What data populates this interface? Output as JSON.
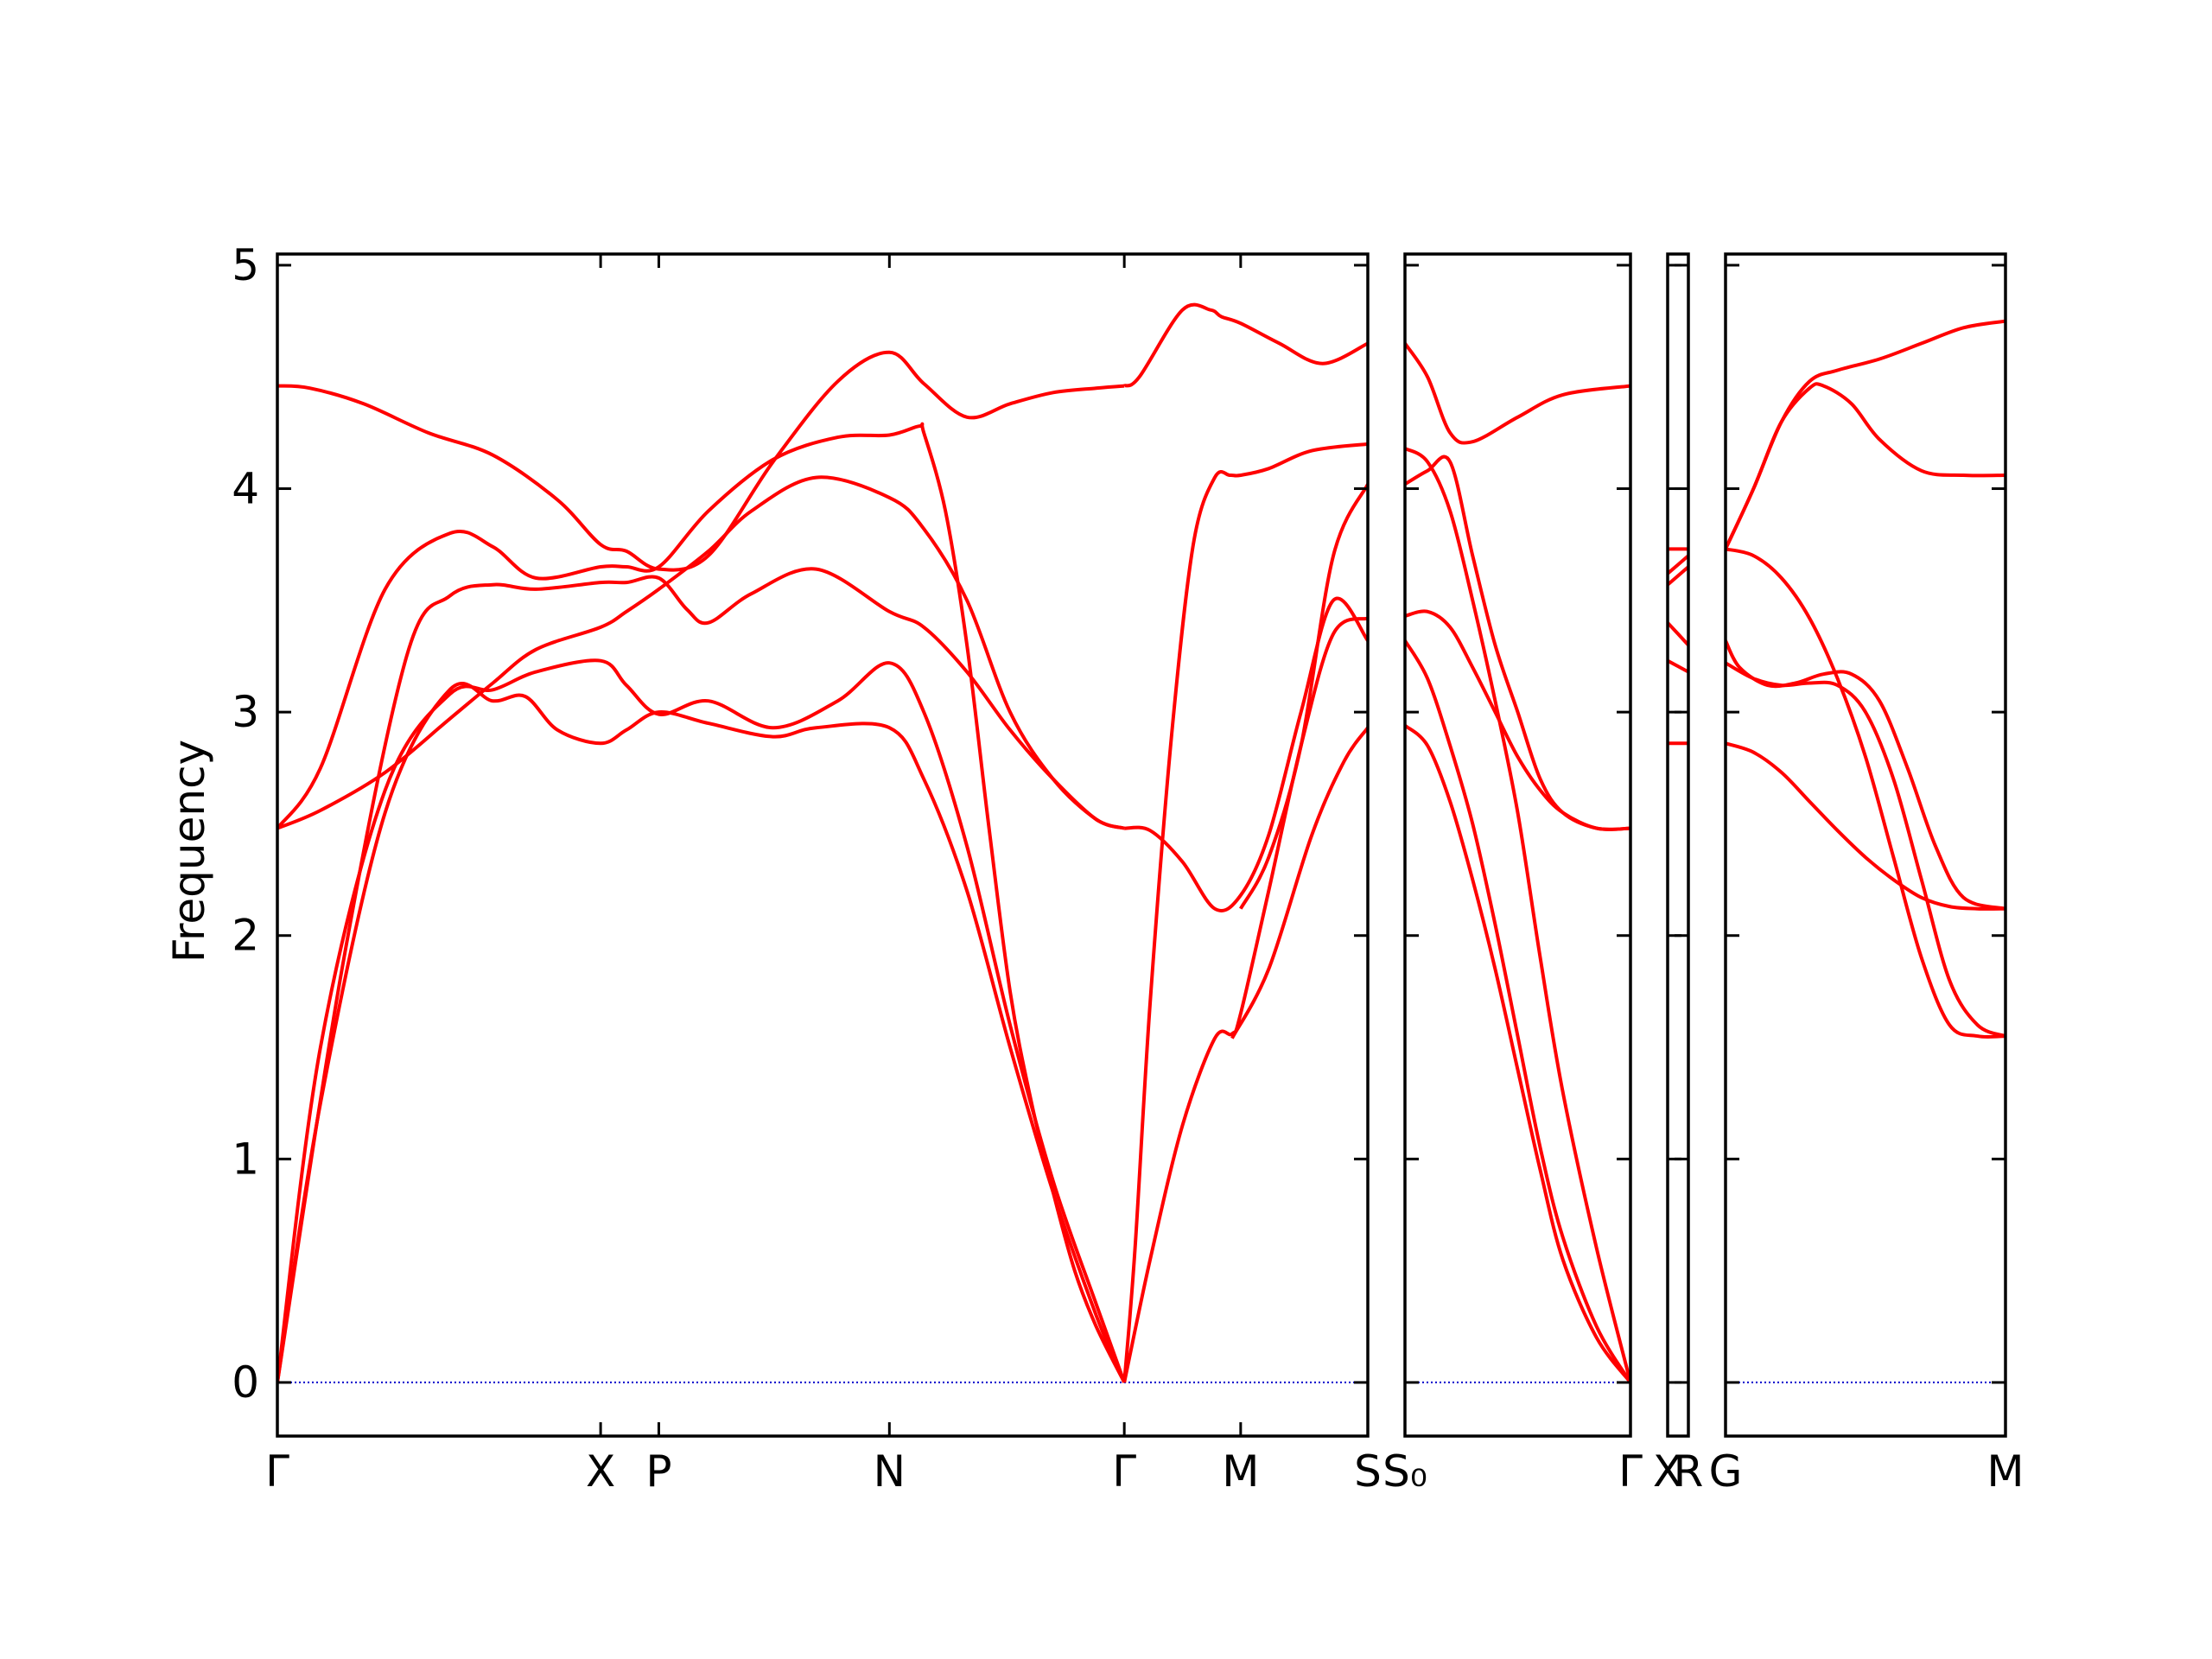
{
  "chart_data": {
    "type": "line",
    "ylabel": "Frequency",
    "ylim": [
      -0.24,
      5.05
    ],
    "yticks": [
      0,
      1,
      2,
      3,
      4,
      5
    ],
    "line_color": "#ff0000",
    "zero_line_color": "#0000cc",
    "panels": [
      {
        "name": "panel-1",
        "xlim": [
          0,
          5.06
        ],
        "ticks": [
          {
            "x": 0.0,
            "label": "Γ"
          },
          {
            "x": 1.5,
            "label": "X"
          },
          {
            "x": 1.77,
            "label": "P"
          },
          {
            "x": 2.84,
            "label": "N"
          },
          {
            "x": 3.93,
            "label": "Γ"
          },
          {
            "x": 4.47,
            "label": "M"
          },
          {
            "x": 5.06,
            "label": "S"
          }
        ],
        "series": [
          {
            "x": [
              0,
              0.15,
              0.4,
              0.7,
              1.0,
              1.3,
              1.5,
              1.62,
              1.77,
              2.0,
              2.3,
              2.6,
              2.84,
              3.0,
              3.2,
              3.4,
              3.6,
              3.8,
              3.93
            ],
            "y": [
              4.46,
              4.45,
              4.38,
              4.25,
              4.15,
              3.95,
              3.75,
              3.72,
              3.64,
              3.7,
              4.12,
              4.48,
              4.61,
              4.47,
              4.32,
              4.38,
              4.43,
              4.45,
              4.46
            ]
          },
          {
            "x": [
              3.93,
              4.0,
              4.2,
              4.33,
              4.38,
              4.47,
              4.65,
              4.85,
              5.06
            ],
            "y": [
              4.46,
              4.5,
              4.8,
              4.8,
              4.77,
              4.74,
              4.65,
              4.56,
              4.65
            ]
          },
          {
            "x": [
              0,
              0.2,
              0.5,
              0.8,
              1.0,
              1.2,
              1.5,
              1.62,
              1.77,
              2.0,
              2.3,
              2.6,
              2.84,
              2.98,
              3.0,
              3.1,
              3.2,
              3.3,
              3.4,
              3.5,
              3.6,
              3.7,
              3.8,
              3.93
            ],
            "y": [
              2.48,
              2.75,
              3.55,
              3.8,
              3.74,
              3.6,
              3.65,
              3.65,
              3.65,
              3.9,
              4.13,
              4.23,
              4.24,
              4.28,
              4.25,
              3.9,
              3.3,
              2.5,
              1.75,
              1.25,
              0.85,
              0.5,
              0.25,
              0.0
            ]
          },
          {
            "x": [
              0,
              0.2,
              0.5,
              0.8,
              1.0,
              1.2,
              1.5,
              1.62,
              1.77,
              2.0,
              2.2,
              2.5,
              2.84,
              3.0,
              3.2,
              3.4,
              3.6,
              3.8,
              3.93
            ],
            "y": [
              2.48,
              2.56,
              2.73,
              2.97,
              3.13,
              3.28,
              3.38,
              3.45,
              3.55,
              3.72,
              3.9,
              4.05,
              3.96,
              3.82,
              3.5,
              3.0,
              2.7,
              2.52,
              2.48
            ]
          },
          {
            "x": [
              0,
              0.3,
              0.6,
              0.8,
              1.0,
              1.2,
              1.5,
              1.62,
              1.77,
              1.9,
              2.0,
              2.2,
              2.5,
              2.84,
              3.0,
              3.2,
              3.4,
              3.6,
              3.8,
              3.93
            ],
            "y": [
              0.0,
              1.85,
              3.25,
              3.52,
              3.57,
              3.55,
              3.58,
              3.58,
              3.6,
              3.46,
              3.4,
              3.53,
              3.64,
              3.45,
              3.38,
              3.18,
              2.92,
              2.7,
              2.52,
              2.48
            ]
          },
          {
            "x": [
              0,
              0.2,
              0.5,
              0.8,
              1.0,
              1.2,
              1.5,
              1.62,
              1.77,
              2.0,
              2.3,
              2.6,
              2.84,
              3.0,
              3.2,
              3.4,
              3.6,
              3.8,
              3.93
            ],
            "y": [
              0.0,
              1.5,
              2.65,
              3.08,
              3.1,
              3.18,
              3.23,
              3.12,
              2.99,
              3.05,
              2.93,
              3.05,
              3.22,
              3.0,
              2.4,
              1.6,
              0.9,
              0.35,
              0.0
            ]
          },
          {
            "x": [
              0,
              0.2,
              0.5,
              0.8,
              1.0,
              1.15,
              1.3,
              1.5,
              1.62,
              1.77,
              2.0,
              2.3,
              2.5,
              2.84,
              3.0,
              3.2,
              3.4,
              3.6,
              3.8,
              3.93
            ],
            "y": [
              0.0,
              1.25,
              2.55,
              3.1,
              3.05,
              3.07,
              2.92,
              2.86,
              2.92,
              3.0,
              2.95,
              2.89,
              2.93,
              2.93,
              2.7,
              2.2,
              1.5,
              0.85,
              0.3,
              0.0
            ]
          },
          {
            "x": [
              3.93,
              3.98,
              4.05,
              4.15,
              4.25,
              4.35,
              4.42,
              4.47,
              4.6,
              4.8,
              5.06
            ],
            "y": [
              0.0,
              0.6,
              1.7,
              2.9,
              3.75,
              4.05,
              4.06,
              4.06,
              4.09,
              4.17,
              4.2
            ]
          },
          {
            "x": [
              3.93,
              4.05,
              4.2,
              4.35,
              4.47,
              4.6,
              4.75,
              4.9,
              5.06
            ],
            "y": [
              2.48,
              2.47,
              2.33,
              2.12,
              2.18,
              2.45,
              3.0,
              3.5,
              3.32
            ]
          },
          {
            "x": [
              3.93,
              4.05,
              4.2,
              4.35,
              4.43,
              4.47,
              4.6,
              4.75,
              4.9,
              5.06
            ],
            "y": [
              0.0,
              0.55,
              1.15,
              1.54,
              1.56,
              1.65,
              2.2,
              2.85,
              3.35,
              3.42
            ]
          },
          {
            "x": [
              4.47,
              4.6,
              4.75,
              4.9,
              5.06
            ],
            "y": [
              2.12,
              2.35,
              2.85,
              3.7,
              4.02
            ]
          },
          {
            "x": [
              4.43,
              4.6,
              4.8,
              4.95,
              5.06
            ],
            "y": [
              1.54,
              1.85,
              2.45,
              2.78,
              2.93
            ]
          }
        ]
      },
      {
        "name": "panel-2",
        "xlim": [
          0,
          1.0
        ],
        "ticks": [
          {
            "x": 0.0,
            "label": "S₀"
          },
          {
            "x": 1.0,
            "label": "Γ"
          }
        ],
        "series": [
          {
            "x": [
              0,
              0.1,
              0.2,
              0.3,
              0.5,
              0.7,
              1.0
            ],
            "y": [
              4.65,
              4.5,
              4.25,
              4.21,
              4.32,
              4.42,
              4.46
            ]
          },
          {
            "x": [
              0,
              0.1,
              0.2,
              0.3,
              0.4,
              0.5,
              0.6,
              0.7,
              0.85,
              1.0
            ],
            "y": [
              4.02,
              4.08,
              4.12,
              3.7,
              3.3,
              3.0,
              2.7,
              2.55,
              2.48,
              2.48
            ]
          },
          {
            "x": [
              0,
              0.1,
              0.2,
              0.3,
              0.4,
              0.5,
              0.6,
              0.7,
              0.85,
              1.0
            ],
            "y": [
              4.18,
              4.12,
              3.9,
              3.5,
              3.05,
              2.55,
              1.9,
              1.3,
              0.6,
              0.0
            ]
          },
          {
            "x": [
              0,
              0.1,
              0.2,
              0.3,
              0.4,
              0.5,
              0.6,
              0.7,
              0.85,
              1.0
            ],
            "y": [
              3.43,
              3.45,
              3.38,
              3.2,
              3.0,
              2.8,
              2.65,
              2.55,
              2.48,
              2.48
            ]
          },
          {
            "x": [
              0,
              0.1,
              0.2,
              0.3,
              0.4,
              0.5,
              0.6,
              0.7,
              0.85,
              1.0
            ],
            "y": [
              3.32,
              3.15,
              2.85,
              2.5,
              2.05,
              1.55,
              1.05,
              0.65,
              0.25,
              0.0
            ]
          },
          {
            "x": [
              0,
              0.1,
              0.2,
              0.3,
              0.4,
              0.5,
              0.6,
              0.7,
              0.85,
              1.0
            ],
            "y": [
              2.94,
              2.85,
              2.6,
              2.25,
              1.85,
              1.4,
              0.95,
              0.55,
              0.2,
              0.0
            ]
          }
        ]
      },
      {
        "name": "panel-3",
        "xlim": [
          0,
          1.0
        ],
        "ticks": [
          {
            "x": 0.0,
            "label": "X"
          },
          {
            "x": 1.0,
            "label": "R"
          }
        ],
        "series": [
          {
            "x": [
              0,
              1
            ],
            "y": [
              3.73,
              3.73
            ]
          },
          {
            "x": [
              0,
              1
            ],
            "y": [
              3.62,
              3.7
            ]
          },
          {
            "x": [
              0,
              1
            ],
            "y": [
              3.57,
              3.65
            ]
          },
          {
            "x": [
              0,
              1
            ],
            "y": [
              3.4,
              3.3
            ]
          },
          {
            "x": [
              0,
              1
            ],
            "y": [
              3.23,
              3.18
            ]
          },
          {
            "x": [
              0,
              1
            ],
            "y": [
              2.86,
              2.86
            ]
          }
        ]
      },
      {
        "name": "panel-4",
        "xlim": [
          0,
          1.0
        ],
        "ticks": [
          {
            "x": 0.0,
            "label": "G"
          },
          {
            "x": 1.0,
            "label": "M"
          }
        ],
        "series": [
          {
            "x": [
              0,
              0.1,
              0.2,
              0.3,
              0.4,
              0.55,
              0.7,
              0.85,
              1.0
            ],
            "y": [
              3.73,
              4.0,
              4.3,
              4.48,
              4.53,
              4.58,
              4.65,
              4.72,
              4.75
            ]
          },
          {
            "x": [
              0,
              0.1,
              0.2,
              0.3,
              0.35,
              0.45,
              0.55,
              0.7,
              0.85,
              1.0
            ],
            "y": [
              3.73,
              4.0,
              4.3,
              4.45,
              4.46,
              4.38,
              4.22,
              4.08,
              4.06,
              4.06
            ]
          },
          {
            "x": [
              0,
              0.1,
              0.2,
              0.3,
              0.4,
              0.5,
              0.6,
              0.7,
              0.8,
              0.9,
              1.0
            ],
            "y": [
              3.73,
              3.7,
              3.6,
              3.42,
              3.15,
              2.8,
              2.35,
              1.9,
              1.6,
              1.55,
              1.55
            ]
          },
          {
            "x": [
              0,
              0.05,
              0.15,
              0.25,
              0.35,
              0.45,
              0.55,
              0.65,
              0.75,
              0.85,
              1.0
            ],
            "y": [
              3.32,
              3.2,
              3.12,
              3.13,
              3.17,
              3.17,
              3.05,
              2.75,
              2.4,
              2.17,
              2.12
            ]
          },
          {
            "x": [
              0,
              0.1,
              0.2,
              0.3,
              0.4,
              0.5,
              0.6,
              0.7,
              0.8,
              0.9,
              1.0
            ],
            "y": [
              3.22,
              3.15,
              3.12,
              3.13,
              3.12,
              3.0,
              2.7,
              2.25,
              1.8,
              1.6,
              1.55
            ]
          },
          {
            "x": [
              0,
              0.1,
              0.2,
              0.3,
              0.4,
              0.5,
              0.6,
              0.7,
              0.8,
              0.9,
              1.0
            ],
            "y": [
              2.86,
              2.82,
              2.73,
              2.6,
              2.47,
              2.35,
              2.25,
              2.17,
              2.13,
              2.12,
              2.12
            ]
          }
        ]
      }
    ]
  }
}
